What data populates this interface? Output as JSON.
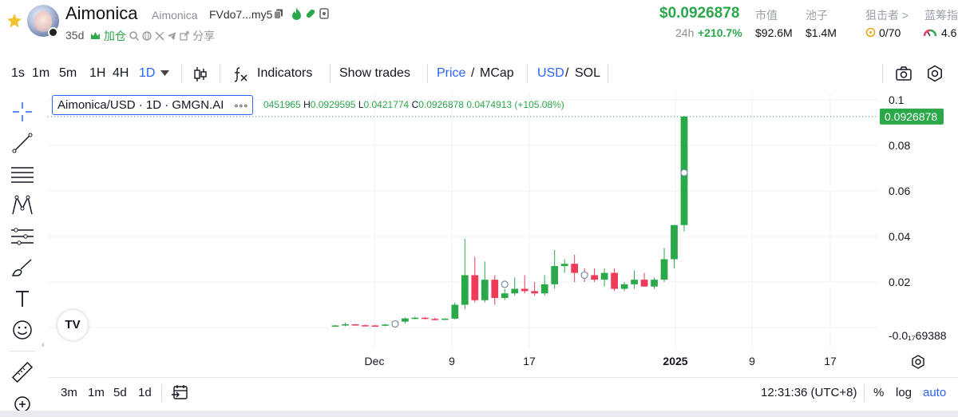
{
  "header": {
    "token_name": "Aimonica",
    "token_sub": "Aimonica",
    "address": "FVdo7...my5",
    "age": "35d",
    "join_label": "加仓",
    "share_label": "分享",
    "price": "$0.0926878",
    "change_label": "24h",
    "change_value": "+210.7%",
    "stats": [
      {
        "label": "市值",
        "value": "$92.6M"
      },
      {
        "label": "池子",
        "value": "$1.4M"
      },
      {
        "label": "狙击者 >",
        "value": "0/70"
      },
      {
        "label": "蓝筹指数",
        "value": "4.6"
      }
    ]
  },
  "toolbar": {
    "intervals": [
      "1s",
      "1m",
      "5m",
      "1H",
      "4H",
      "1D"
    ],
    "active_interval": "1D",
    "indicators_label": "Indicators",
    "show_trades_label": "Show trades",
    "price_label": "Price",
    "slash": "/",
    "mcap_label": "MCap",
    "usd_label": "USD",
    "sol_label": "SOL"
  },
  "legend": {
    "title": "Aimonica/USD · 1D · GMGN.AI",
    "more": "∘∘∘",
    "open_partial": "0451965",
    "high_key": "H",
    "high": "0.0929595",
    "low_key": "L",
    "low": "0.0421774",
    "close_key": "C",
    "close": "0.0926878",
    "change": "0.0474913 (+105.08%)"
  },
  "chart_data": {
    "type": "candlestick",
    "x_ticks": [
      "Dec",
      "9",
      "17",
      "2025",
      "9",
      "17"
    ],
    "y_ticks": [
      "0.1",
      "0.08",
      "0.06",
      "0.04",
      "0.02",
      "-0.0₁₇69388"
    ],
    "ylim": [
      -0.01,
      0.1
    ],
    "last_price_label": "0.0926878",
    "candles": [
      {
        "o": 0.0008,
        "h": 0.0012,
        "l": 0.0006,
        "c": 0.0009
      },
      {
        "o": 0.0009,
        "h": 0.0022,
        "l": 0.0006,
        "c": 0.0014
      },
      {
        "o": 0.0014,
        "h": 0.0016,
        "l": 0.0008,
        "c": 0.001
      },
      {
        "o": 0.001,
        "h": 0.0013,
        "l": 0.0007,
        "c": 0.0009
      },
      {
        "o": 0.0009,
        "h": 0.0012,
        "l": 0.0006,
        "c": 0.0008
      },
      {
        "o": 0.0008,
        "h": 0.0016,
        "l": 0.0006,
        "c": 0.0013
      },
      {
        "o": 0.0013,
        "h": 0.003,
        "l": 0.001,
        "c": 0.0026
      },
      {
        "o": 0.0026,
        "h": 0.0044,
        "l": 0.0018,
        "c": 0.004
      },
      {
        "o": 0.004,
        "h": 0.0048,
        "l": 0.0036,
        "c": 0.0043
      },
      {
        "o": 0.0043,
        "h": 0.0046,
        "l": 0.0036,
        "c": 0.0038
      },
      {
        "o": 0.0038,
        "h": 0.0044,
        "l": 0.0032,
        "c": 0.0036
      },
      {
        "o": 0.0036,
        "h": 0.004,
        "l": 0.0034,
        "c": 0.0039
      },
      {
        "o": 0.0039,
        "h": 0.011,
        "l": 0.0035,
        "c": 0.01
      },
      {
        "o": 0.01,
        "h": 0.039,
        "l": 0.008,
        "c": 0.023
      },
      {
        "o": 0.023,
        "h": 0.031,
        "l": 0.011,
        "c": 0.012
      },
      {
        "o": 0.012,
        "h": 0.029,
        "l": 0.011,
        "c": 0.021
      },
      {
        "o": 0.021,
        "h": 0.023,
        "l": 0.01,
        "c": 0.013
      },
      {
        "o": 0.013,
        "h": 0.017,
        "l": 0.012,
        "c": 0.015
      },
      {
        "o": 0.015,
        "h": 0.022,
        "l": 0.014,
        "c": 0.017
      },
      {
        "o": 0.017,
        "h": 0.023,
        "l": 0.015,
        "c": 0.016
      },
      {
        "o": 0.016,
        "h": 0.02,
        "l": 0.014,
        "c": 0.015
      },
      {
        "o": 0.015,
        "h": 0.023,
        "l": 0.014,
        "c": 0.019
      },
      {
        "o": 0.019,
        "h": 0.034,
        "l": 0.017,
        "c": 0.027
      },
      {
        "o": 0.027,
        "h": 0.03,
        "l": 0.024,
        "c": 0.028
      },
      {
        "o": 0.028,
        "h": 0.032,
        "l": 0.02,
        "c": 0.024
      },
      {
        "o": 0.024,
        "h": 0.026,
        "l": 0.02,
        "c": 0.023
      },
      {
        "o": 0.023,
        "h": 0.026,
        "l": 0.02,
        "c": 0.021
      },
      {
        "o": 0.021,
        "h": 0.026,
        "l": 0.018,
        "c": 0.024
      },
      {
        "o": 0.024,
        "h": 0.026,
        "l": 0.016,
        "c": 0.017
      },
      {
        "o": 0.017,
        "h": 0.02,
        "l": 0.016,
        "c": 0.019
      },
      {
        "o": 0.019,
        "h": 0.025,
        "l": 0.017,
        "c": 0.021
      },
      {
        "o": 0.021,
        "h": 0.024,
        "l": 0.018,
        "c": 0.018
      },
      {
        "o": 0.018,
        "h": 0.022,
        "l": 0.017,
        "c": 0.021
      },
      {
        "o": 0.021,
        "h": 0.035,
        "l": 0.02,
        "c": 0.03
      },
      {
        "o": 0.03,
        "h": 0.045,
        "l": 0.026,
        "c": 0.045
      },
      {
        "o": 0.045,
        "h": 0.0929595,
        "l": 0.0421774,
        "c": 0.0926878
      }
    ]
  },
  "bottom_bar": {
    "ranges": [
      "3m",
      "1m",
      "5d",
      "1d"
    ],
    "time": "12:31:36 (UTC+8)",
    "percent_label": "%",
    "log_label": "log",
    "auto_label": "auto"
  },
  "colors": {
    "up": "#2ba84a",
    "down": "#ee3b5a",
    "accent": "#2962ff",
    "last_price_bg": "#2ba84a"
  }
}
